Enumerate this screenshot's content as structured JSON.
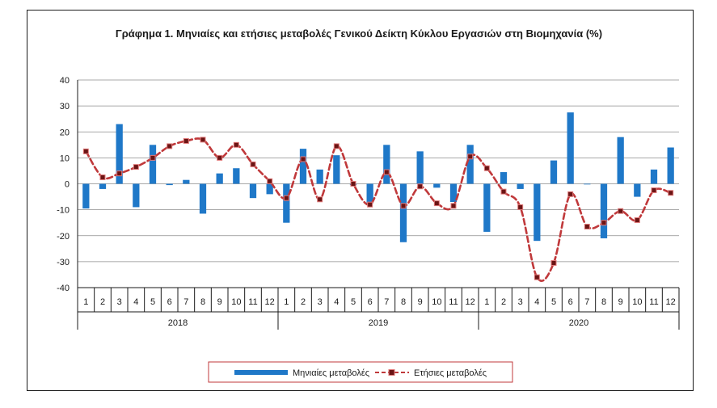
{
  "chart_data": {
    "type": "bar+line",
    "title": "Γράφημα 1. Μηνιαίες και ετήσιες μεταβολές  Γενικού Δείκτη Κύκλου Εργασιών στη Βιομηχανία (%)",
    "ylim": [
      -40,
      40
    ],
    "yticks": [
      40,
      30,
      20,
      10,
      0,
      -10,
      -20,
      -30,
      -40
    ],
    "months": [
      "1",
      "2",
      "3",
      "4",
      "5",
      "6",
      "7",
      "8",
      "9",
      "10",
      "11",
      "12",
      "1",
      "2",
      "3",
      "4",
      "5",
      "6",
      "7",
      "8",
      "9",
      "10",
      "11",
      "12",
      "1",
      "2",
      "3",
      "4",
      "5",
      "6",
      "7",
      "8",
      "9",
      "10",
      "11",
      "12"
    ],
    "years": [
      "2018",
      "2019",
      "2020"
    ],
    "legend_position": "bottom",
    "grid": "horizontal",
    "series": [
      {
        "name": "Μηνιαίες μεταβολές",
        "kind": "bar",
        "color": "#1f78c8",
        "values": [
          -9.5,
          -2,
          23,
          -9,
          15,
          -0.5,
          1.5,
          -11.5,
          4,
          6,
          -5.5,
          -4,
          -15,
          13.5,
          5.5,
          11,
          -0.5,
          -7.5,
          15,
          -22.5,
          12.5,
          -1.5,
          -7,
          15,
          -18.5,
          4.5,
          -2,
          -22,
          9,
          27.5,
          0,
          -21,
          18,
          -5,
          5.5,
          14
        ]
      },
      {
        "name": "Ετήσιες μεταβολές",
        "kind": "line",
        "color": "#c0393b",
        "values": [
          12.5,
          2.5,
          4,
          6.5,
          10,
          14.5,
          16.5,
          17,
          10,
          15,
          7.5,
          1,
          -5.5,
          9.5,
          -6,
          14.5,
          0,
          -8,
          4.5,
          -8.5,
          -1,
          -7.5,
          -8.5,
          10.5,
          6,
          -3,
          -9,
          -36,
          -30.5,
          -4,
          -16.5,
          -15,
          -10.5,
          -14,
          -2.5,
          -3.5
        ]
      }
    ]
  }
}
